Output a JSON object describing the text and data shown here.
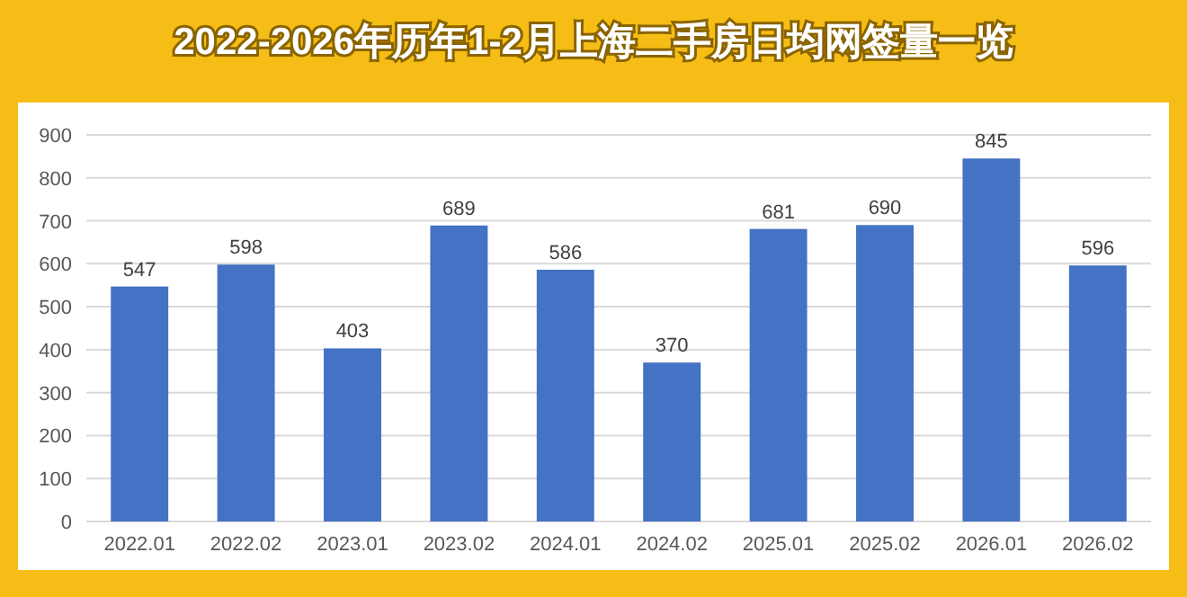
{
  "chart_data": {
    "type": "bar",
    "title": "2022-2026年历年1-2月上海二手房日均网签量一览",
    "categories": [
      "2022.01",
      "2022.02",
      "2023.01",
      "2023.02",
      "2024.01",
      "2024.02",
      "2025.01",
      "2025.02",
      "2026.01",
      "2026.02"
    ],
    "values": [
      547,
      598,
      403,
      689,
      586,
      370,
      681,
      690,
      845,
      596
    ],
    "color": "#4472c4",
    "ylim": [
      0,
      900
    ],
    "yticks": [
      0,
      100,
      200,
      300,
      400,
      500,
      600,
      700,
      800,
      900
    ],
    "grid": "y",
    "data_labels": true
  }
}
